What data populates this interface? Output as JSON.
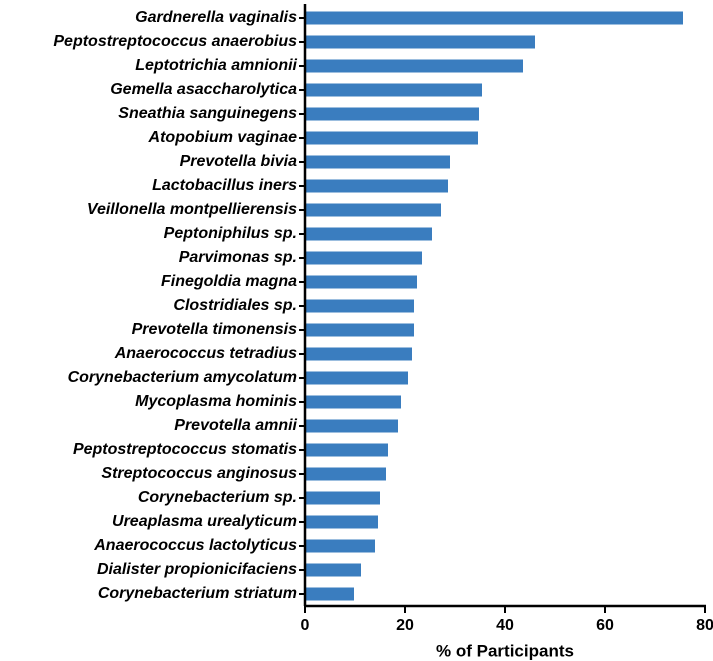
{
  "chart_data": {
    "type": "barh",
    "x_label": "% of Participants",
    "categories": [
      "Gardnerella vaginalis",
      "Peptostreptococcus anaerobius",
      "Leptotrichia amnionii",
      "Gemella asaccharolytica",
      "Sneathia sanguinegens",
      "Atopobium vaginae",
      "Prevotella bivia",
      "Lactobacillus iners",
      "Veillonella montpellierensis",
      "Peptoniphilus sp.",
      "Parvimonas sp.",
      "Finegoldia magna",
      "Clostridiales sp.",
      "Prevotella timonensis",
      "Anaerococcus tetradius",
      "Corynebacterium amycolatum",
      "Mycoplasma hominis",
      "Prevotella amnii",
      "Peptostreptococcus stomatis",
      "Streptococcus anginosus",
      "Corynebacterium sp.",
      "Ureaplasma urealyticum",
      "Anaerococcus lactolyticus",
      "Dialister propionicifaciens",
      "Corynebacterium striatum"
    ],
    "values": [
      75.6,
      46,
      43.6,
      35.4,
      34.8,
      34.6,
      29,
      28.6,
      27.2,
      25.4,
      23.4,
      22.4,
      21.8,
      21.8,
      21.4,
      20.6,
      19.2,
      18.6,
      16.6,
      16.2,
      15,
      14.6,
      14,
      11.2,
      9.8
    ],
    "color": "#3a7dbf",
    "xlim": [
      0,
      80
    ],
    "xticks": [
      0,
      20,
      40,
      60,
      80
    ]
  }
}
